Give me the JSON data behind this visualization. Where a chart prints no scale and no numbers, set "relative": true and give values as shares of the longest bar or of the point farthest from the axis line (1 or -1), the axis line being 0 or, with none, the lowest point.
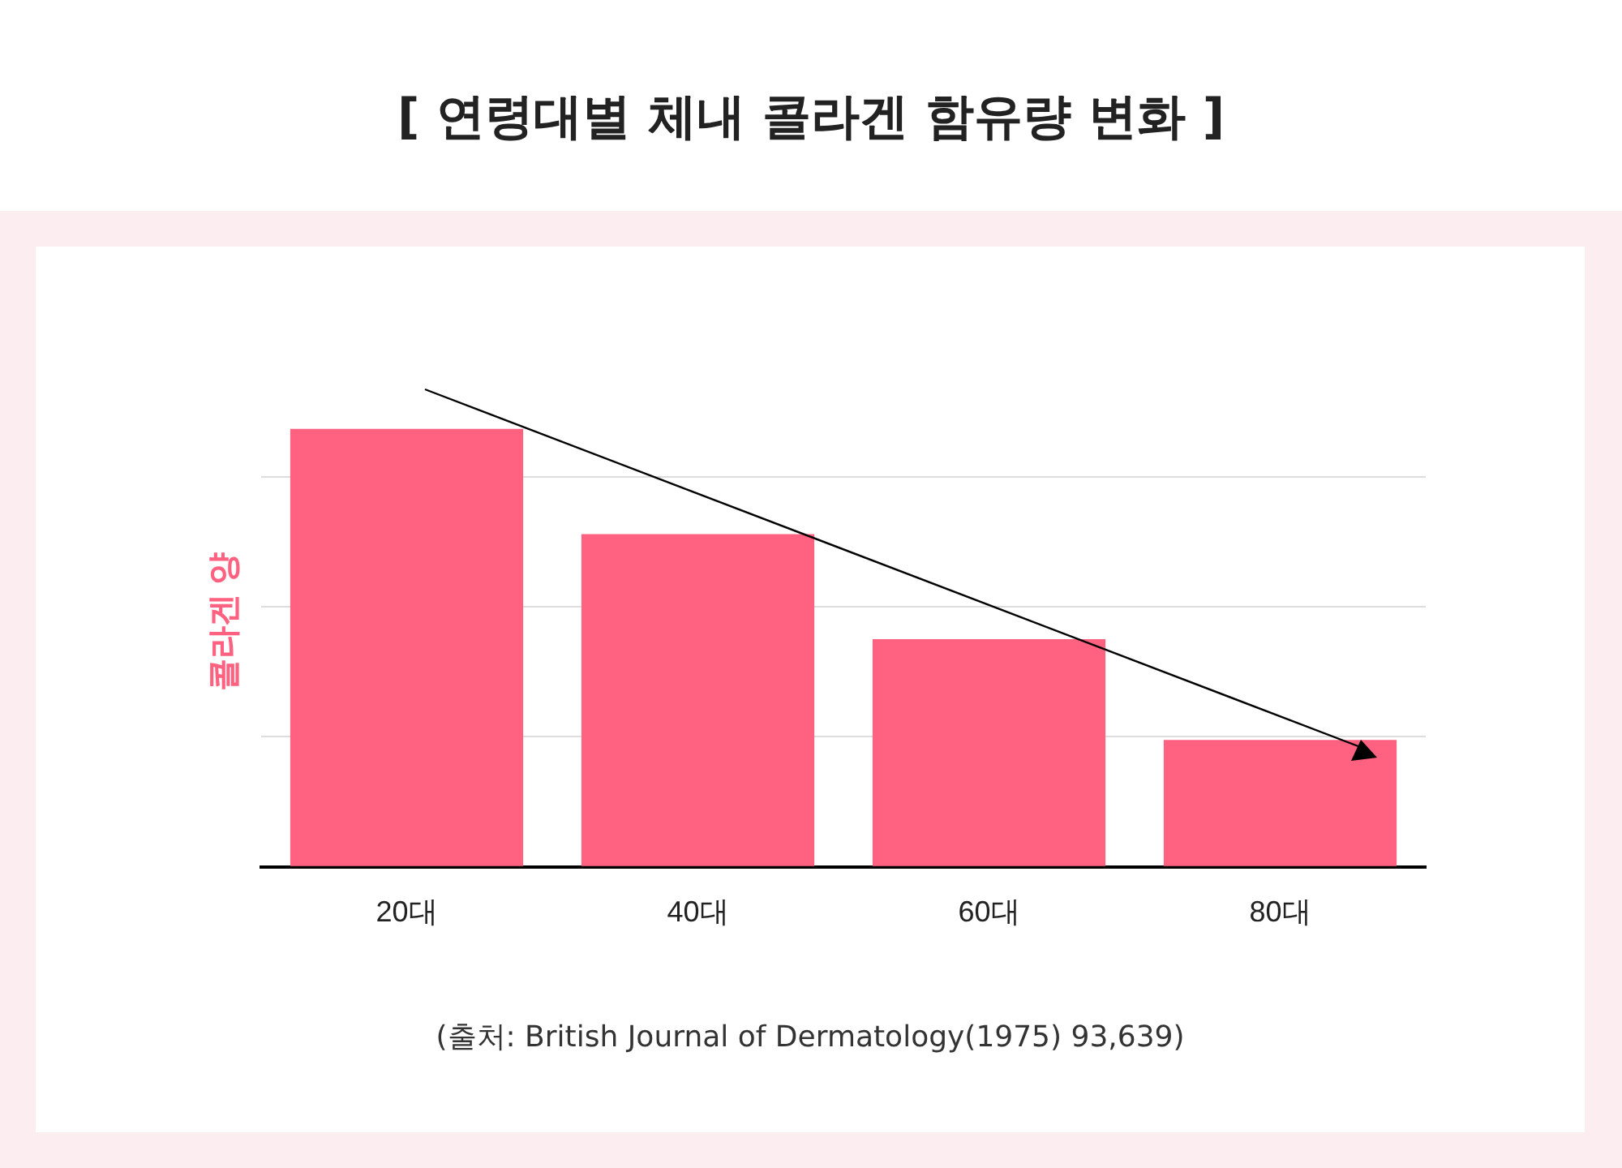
{
  "chart_data": {
    "type": "bar",
    "title": "[ 연령대별 체내 콜라겐 함유량 변화 ]",
    "ylabel": "콜라겐 양",
    "categories": [
      "20대",
      "40대",
      "60대",
      "80대"
    ],
    "values": [
      1,
      0.76,
      0.52,
      0.29
    ],
    "color": "#ff6280",
    "relative": true,
    "grid": "y",
    "annotations": [
      "(출처: British Journal of Dermatology(1975) 93,639)"
    ]
  }
}
